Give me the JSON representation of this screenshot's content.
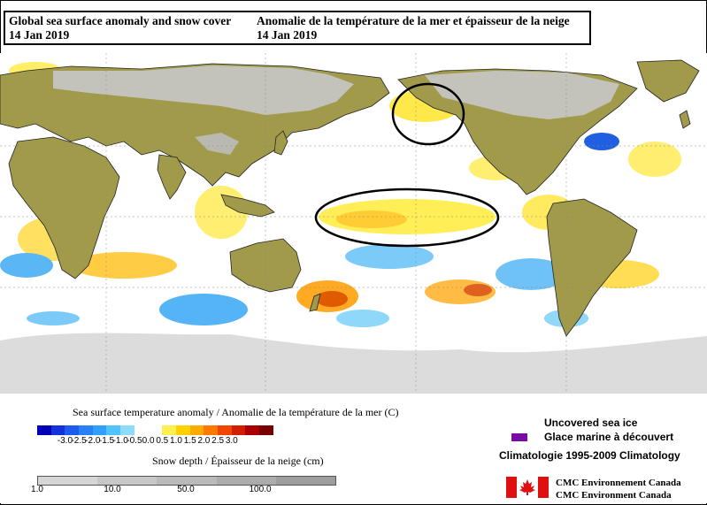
{
  "title": {
    "english": "Global sea surface anomaly and snow cover",
    "french": "Anomalie de la température de la mer et épaisseur de la neige",
    "date_en": "14 Jan 2019",
    "date_fr": "14 Jan 2019"
  },
  "legend": {
    "sst_title": "Sea surface temperature anomaly / Anomalie de la température de la mer (C)",
    "sst_ticks": [
      "-3.0",
      "-2.5",
      "-2.0",
      "-1.5",
      "-1.0",
      "-0.5",
      "0.0",
      "0.5",
      "1.0",
      "1.5",
      "2.0",
      "2.5",
      "3.0"
    ],
    "sst_colors": [
      "#0000b4",
      "#1432dc",
      "#1e5af0",
      "#2882f5",
      "#32a0fa",
      "#50c3fa",
      "#8ddcfa",
      "#ffffff",
      "#ffffff",
      "#fff050",
      "#ffd200",
      "#ffaa00",
      "#ff7800",
      "#f04600",
      "#d21e00",
      "#aa0000",
      "#780000"
    ],
    "snow_title": "Snow depth / Épaisseur de la neige (cm)",
    "snow_ticks": [
      "1.0",
      "10.0",
      "50.0",
      "100.0"
    ],
    "snow_colors": [
      "#d6d6d6",
      "#c8c8c8",
      "#bababa",
      "#acacac",
      "#9e9e9e"
    ],
    "sea_ice_en": "Uncovered sea ice",
    "sea_ice_fr": "Glace marine à découvert",
    "sea_ice_color": "#7a0aa6",
    "climatology": "Climatologie 1995-2009 Climatology",
    "org_line1": "CMC Environnement Canada",
    "org_line2": "CMC Environment Canada"
  },
  "map": {
    "land_color": "#a09a4a",
    "snow_color": "#c8c8c8",
    "annotations": [
      "circle-north-pacific",
      "ellipse-equatorial-pacific"
    ]
  }
}
